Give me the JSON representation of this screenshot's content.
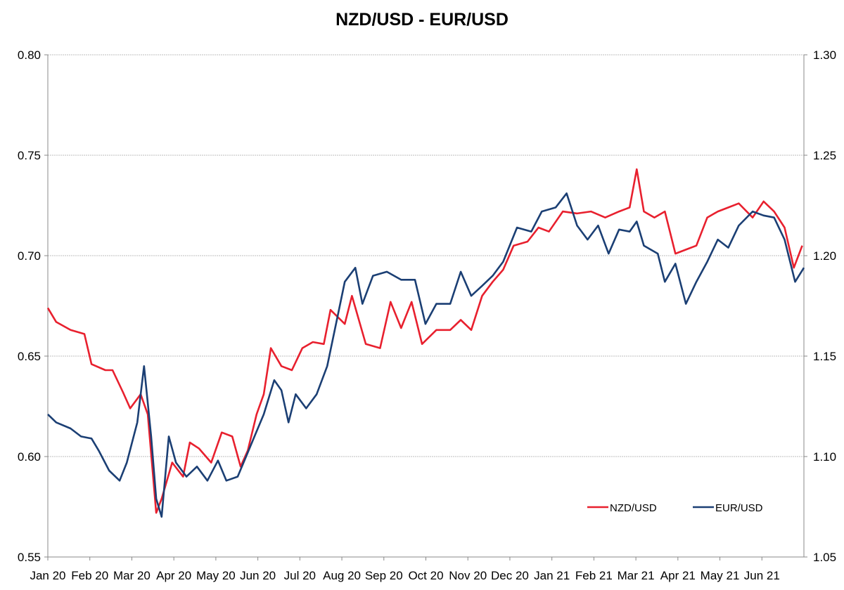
{
  "chart_data": {
    "type": "line",
    "title": "NZD/USD - EUR/USD",
    "x_unit": "months since Jan 2020",
    "x_tick_labels": [
      "Jan 20",
      "Feb 20",
      "Mar 20",
      "Apr 20",
      "May 20",
      "Jun 20",
      "Jul 20",
      "Aug 20",
      "Sep 20",
      "Oct 20",
      "Nov 20",
      "Dec 20",
      "Jan 21",
      "Feb 21",
      "Mar 21",
      "Apr 21",
      "May 21",
      "Jun 21"
    ],
    "xlim": [
      0,
      18
    ],
    "y_left": {
      "ylim": [
        0.55,
        0.8
      ],
      "ticks": [
        "0.55",
        "0.60",
        "0.65",
        "0.70",
        "0.75",
        "0.80"
      ]
    },
    "y_right": {
      "ylim": [
        1.05,
        1.3
      ],
      "ticks": [
        "1.05",
        "1.10",
        "1.15",
        "1.20",
        "1.25",
        "1.30"
      ]
    },
    "grid": "horizontal",
    "legend_position": "bottom-right",
    "series": [
      {
        "name": "NZD/USD",
        "axis": "left",
        "color": "#e8202e",
        "points": [
          [
            0,
            0.674
          ],
          [
            0.2,
            0.667
          ],
          [
            0.54,
            0.663
          ],
          [
            0.87,
            0.661
          ],
          [
            1.04,
            0.646
          ],
          [
            1.37,
            0.643
          ],
          [
            1.54,
            0.643
          ],
          [
            1.79,
            0.632
          ],
          [
            1.96,
            0.624
          ],
          [
            2.21,
            0.631
          ],
          [
            2.38,
            0.621
          ],
          [
            2.58,
            0.572
          ],
          [
            2.71,
            0.579
          ],
          [
            2.96,
            0.597
          ],
          [
            3.22,
            0.59
          ],
          [
            3.38,
            0.607
          ],
          [
            3.6,
            0.604
          ],
          [
            3.89,
            0.597
          ],
          [
            4.14,
            0.612
          ],
          [
            4.39,
            0.61
          ],
          [
            4.59,
            0.595
          ],
          [
            4.76,
            0.603
          ],
          [
            4.97,
            0.621
          ],
          [
            5.14,
            0.631
          ],
          [
            5.31,
            0.654
          ],
          [
            5.56,
            0.645
          ],
          [
            5.81,
            0.643
          ],
          [
            6.06,
            0.654
          ],
          [
            6.31,
            0.657
          ],
          [
            6.57,
            0.656
          ],
          [
            6.73,
            0.673
          ],
          [
            7.07,
            0.666
          ],
          [
            7.24,
            0.68
          ],
          [
            7.57,
            0.656
          ],
          [
            7.91,
            0.654
          ],
          [
            8.16,
            0.677
          ],
          [
            8.41,
            0.664
          ],
          [
            8.66,
            0.677
          ],
          [
            8.91,
            0.656
          ],
          [
            9.25,
            0.663
          ],
          [
            9.58,
            0.663
          ],
          [
            9.83,
            0.668
          ],
          [
            10.08,
            0.663
          ],
          [
            10.34,
            0.68
          ],
          [
            10.59,
            0.687
          ],
          [
            10.84,
            0.693
          ],
          [
            11.09,
            0.705
          ],
          [
            11.42,
            0.707
          ],
          [
            11.68,
            0.714
          ],
          [
            11.93,
            0.712
          ],
          [
            12.26,
            0.722
          ],
          [
            12.6,
            0.721
          ],
          [
            12.93,
            0.722
          ],
          [
            13.27,
            0.719
          ],
          [
            13.6,
            0.722
          ],
          [
            13.85,
            0.724
          ],
          [
            14.02,
            0.743
          ],
          [
            14.19,
            0.722
          ],
          [
            14.44,
            0.719
          ],
          [
            14.69,
            0.722
          ],
          [
            14.94,
            0.701
          ],
          [
            15.19,
            0.703
          ],
          [
            15.44,
            0.705
          ],
          [
            15.7,
            0.719
          ],
          [
            15.95,
            0.722
          ],
          [
            16.2,
            0.724
          ],
          [
            16.45,
            0.726
          ],
          [
            16.78,
            0.719
          ],
          [
            17.04,
            0.727
          ],
          [
            17.29,
            0.722
          ],
          [
            17.54,
            0.714
          ],
          [
            17.76,
            0.694
          ],
          [
            17.96,
            0.705
          ]
        ]
      },
      {
        "name": "EUR/USD",
        "axis": "right",
        "color": "#1b3f74",
        "points": [
          [
            0,
            1.121
          ],
          [
            0.2,
            1.117
          ],
          [
            0.54,
            1.114
          ],
          [
            0.79,
            1.11
          ],
          [
            1.04,
            1.109
          ],
          [
            1.21,
            1.103
          ],
          [
            1.46,
            1.093
          ],
          [
            1.71,
            1.088
          ],
          [
            1.88,
            1.097
          ],
          [
            2.13,
            1.117
          ],
          [
            2.29,
            1.145
          ],
          [
            2.46,
            1.11
          ],
          [
            2.58,
            1.079
          ],
          [
            2.71,
            1.07
          ],
          [
            2.88,
            1.11
          ],
          [
            3.05,
            1.097
          ],
          [
            3.3,
            1.09
          ],
          [
            3.55,
            1.095
          ],
          [
            3.8,
            1.088
          ],
          [
            4.05,
            1.098
          ],
          [
            4.25,
            1.088
          ],
          [
            4.52,
            1.09
          ],
          [
            4.72,
            1.1
          ],
          [
            4.92,
            1.11
          ],
          [
            5.14,
            1.121
          ],
          [
            5.39,
            1.138
          ],
          [
            5.56,
            1.133
          ],
          [
            5.73,
            1.117
          ],
          [
            5.9,
            1.131
          ],
          [
            6.15,
            1.124
          ],
          [
            6.4,
            1.131
          ],
          [
            6.65,
            1.145
          ],
          [
            6.9,
            1.17
          ],
          [
            7.07,
            1.187
          ],
          [
            7.32,
            1.194
          ],
          [
            7.49,
            1.176
          ],
          [
            7.74,
            1.19
          ],
          [
            8.07,
            1.192
          ],
          [
            8.41,
            1.188
          ],
          [
            8.74,
            1.188
          ],
          [
            8.99,
            1.166
          ],
          [
            9.25,
            1.176
          ],
          [
            9.58,
            1.176
          ],
          [
            9.83,
            1.192
          ],
          [
            10.08,
            1.18
          ],
          [
            10.34,
            1.185
          ],
          [
            10.59,
            1.19
          ],
          [
            10.84,
            1.197
          ],
          [
            11.17,
            1.214
          ],
          [
            11.51,
            1.212
          ],
          [
            11.76,
            1.222
          ],
          [
            12.09,
            1.224
          ],
          [
            12.35,
            1.231
          ],
          [
            12.6,
            1.215
          ],
          [
            12.85,
            1.208
          ],
          [
            13.1,
            1.215
          ],
          [
            13.35,
            1.201
          ],
          [
            13.6,
            1.213
          ],
          [
            13.85,
            1.212
          ],
          [
            14.02,
            1.217
          ],
          [
            14.19,
            1.205
          ],
          [
            14.52,
            1.201
          ],
          [
            14.69,
            1.187
          ],
          [
            14.94,
            1.196
          ],
          [
            15.19,
            1.176
          ],
          [
            15.44,
            1.187
          ],
          [
            15.7,
            1.197
          ],
          [
            15.95,
            1.208
          ],
          [
            16.2,
            1.204
          ],
          [
            16.45,
            1.215
          ],
          [
            16.78,
            1.222
          ],
          [
            17.04,
            1.22
          ],
          [
            17.29,
            1.219
          ],
          [
            17.54,
            1.208
          ],
          [
            17.79,
            1.187
          ],
          [
            18.0,
            1.194
          ]
        ]
      }
    ]
  }
}
